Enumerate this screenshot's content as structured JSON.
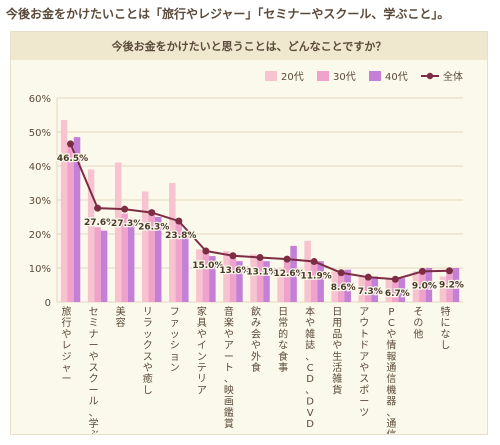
{
  "page": {
    "headline": "今後お金をかけたいことは「旅行やレジャー」「セミナーやスクール、学ぶこと」。"
  },
  "colors": {
    "series_20": "#f7c3cf",
    "series_30": "#eea2cc",
    "series_40": "#c47fd6",
    "total_line": "#7c2d43",
    "grid": "#e0d8be",
    "text": "#5b4a3a"
  },
  "chart_data": {
    "type": "bar",
    "title": "今後お金をかけたいと思うことは、どんなことですか？",
    "xlabel": "",
    "ylabel": "",
    "ylim": [
      0,
      60
    ],
    "yticks": [
      "0",
      "10%",
      "20%",
      "30%",
      "40%",
      "50%",
      "60%"
    ],
    "grid": true,
    "legend_position": "top-right",
    "categories": [
      "旅行やレジャー",
      "セミナーやスクール、学ぶこと",
      "美容",
      "リラックスや癒し",
      "ファッション",
      "家具やインテリア",
      "音楽やアート、映画鑑賞",
      "飲み会や外食",
      "日常的な食事",
      "本や雑誌、CD、DVD",
      "日用品や生活雑貨",
      "アウトドアやスポーツ",
      "PCや情報通信機器、通信費",
      "その他",
      "特になし"
    ],
    "series": [
      {
        "name": "20代",
        "type": "bar",
        "values": [
          53.5,
          39.0,
          41.0,
          32.5,
          35.0,
          15.5,
          15.0,
          14.0,
          10.0,
          18.0,
          9.0,
          7.5,
          7.0,
          9.0,
          7.5
        ]
      },
      {
        "name": "30代",
        "type": "bar",
        "values": [
          46.0,
          22.0,
          26.0,
          27.0,
          24.0,
          15.0,
          13.0,
          13.0,
          12.5,
          12.0,
          8.5,
          7.0,
          6.5,
          8.5,
          9.5
        ]
      },
      {
        "name": "40代",
        "type": "bar",
        "values": [
          48.5,
          21.0,
          24.5,
          25.0,
          20.0,
          13.5,
          12.0,
          12.0,
          16.5,
          12.0,
          9.5,
          7.5,
          7.0,
          10.0,
          10.0
        ]
      },
      {
        "name": "全体",
        "type": "line",
        "values": [
          46.5,
          27.6,
          27.3,
          26.3,
          23.8,
          15.0,
          13.6,
          13.1,
          12.6,
          11.9,
          8.6,
          7.3,
          6.7,
          9.0,
          9.2
        ],
        "labels": [
          "46.5%",
          "27.6%",
          "27.3%",
          "26.3%",
          "23.8%",
          "15.0%",
          "13.6%",
          "13.1%",
          "12.6%",
          "11.9%",
          "8.6%",
          "7.3%",
          "6.7%",
          "9.0%",
          "9.2%"
        ]
      }
    ]
  }
}
